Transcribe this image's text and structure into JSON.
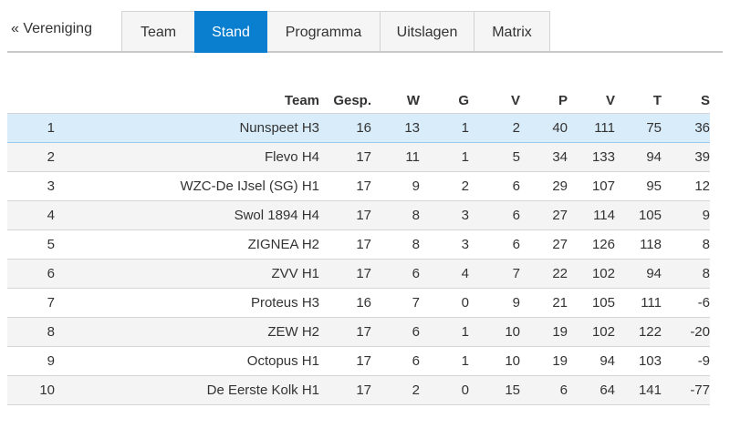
{
  "nav": {
    "back_label": "« Vereniging",
    "tabs": [
      {
        "label": "Team",
        "active": false
      },
      {
        "label": "Stand",
        "active": true
      },
      {
        "label": "Programma",
        "active": false
      },
      {
        "label": "Uitslagen",
        "active": false
      },
      {
        "label": "Matrix",
        "active": false
      }
    ],
    "active_color": "#0a7fcf"
  },
  "standings": {
    "headers": {
      "rank": "",
      "team": "Team",
      "gesp": "Gesp.",
      "w": "W",
      "g": "G",
      "v": "V",
      "p": "P",
      "dv": "V",
      "t": "T",
      "s": "S"
    },
    "highlight_color": "#d9ecfa",
    "rows": [
      {
        "rank": "1",
        "team": "Nunspeet H3",
        "gesp": "16",
        "w": "13",
        "g": "1",
        "v": "2",
        "p": "40",
        "dv": "111",
        "t": "75",
        "s": "36"
      },
      {
        "rank": "2",
        "team": "Flevo H4",
        "gesp": "17",
        "w": "11",
        "g": "1",
        "v": "5",
        "p": "34",
        "dv": "133",
        "t": "94",
        "s": "39"
      },
      {
        "rank": "3",
        "team": "WZC-De IJsel (SG) H1",
        "gesp": "17",
        "w": "9",
        "g": "2",
        "v": "6",
        "p": "29",
        "dv": "107",
        "t": "95",
        "s": "12"
      },
      {
        "rank": "4",
        "team": "Swol 1894 H4",
        "gesp": "17",
        "w": "8",
        "g": "3",
        "v": "6",
        "p": "27",
        "dv": "114",
        "t": "105",
        "s": "9"
      },
      {
        "rank": "5",
        "team": "ZIGNEA H2",
        "gesp": "17",
        "w": "8",
        "g": "3",
        "v": "6",
        "p": "27",
        "dv": "126",
        "t": "118",
        "s": "8"
      },
      {
        "rank": "6",
        "team": "ZVV H1",
        "gesp": "17",
        "w": "6",
        "g": "4",
        "v": "7",
        "p": "22",
        "dv": "102",
        "t": "94",
        "s": "8"
      },
      {
        "rank": "7",
        "team": "Proteus H3",
        "gesp": "16",
        "w": "7",
        "g": "0",
        "v": "9",
        "p": "21",
        "dv": "105",
        "t": "111",
        "s": "-6"
      },
      {
        "rank": "8",
        "team": "ZEW H2",
        "gesp": "17",
        "w": "6",
        "g": "1",
        "v": "10",
        "p": "19",
        "dv": "102",
        "t": "122",
        "s": "-20"
      },
      {
        "rank": "9",
        "team": "Octopus H1",
        "gesp": "17",
        "w": "6",
        "g": "1",
        "v": "10",
        "p": "19",
        "dv": "94",
        "t": "103",
        "s": "-9"
      },
      {
        "rank": "10",
        "team": "De Eerste Kolk H1",
        "gesp": "17",
        "w": "2",
        "g": "0",
        "v": "15",
        "p": "6",
        "dv": "64",
        "t": "141",
        "s": "-77"
      }
    ]
  }
}
